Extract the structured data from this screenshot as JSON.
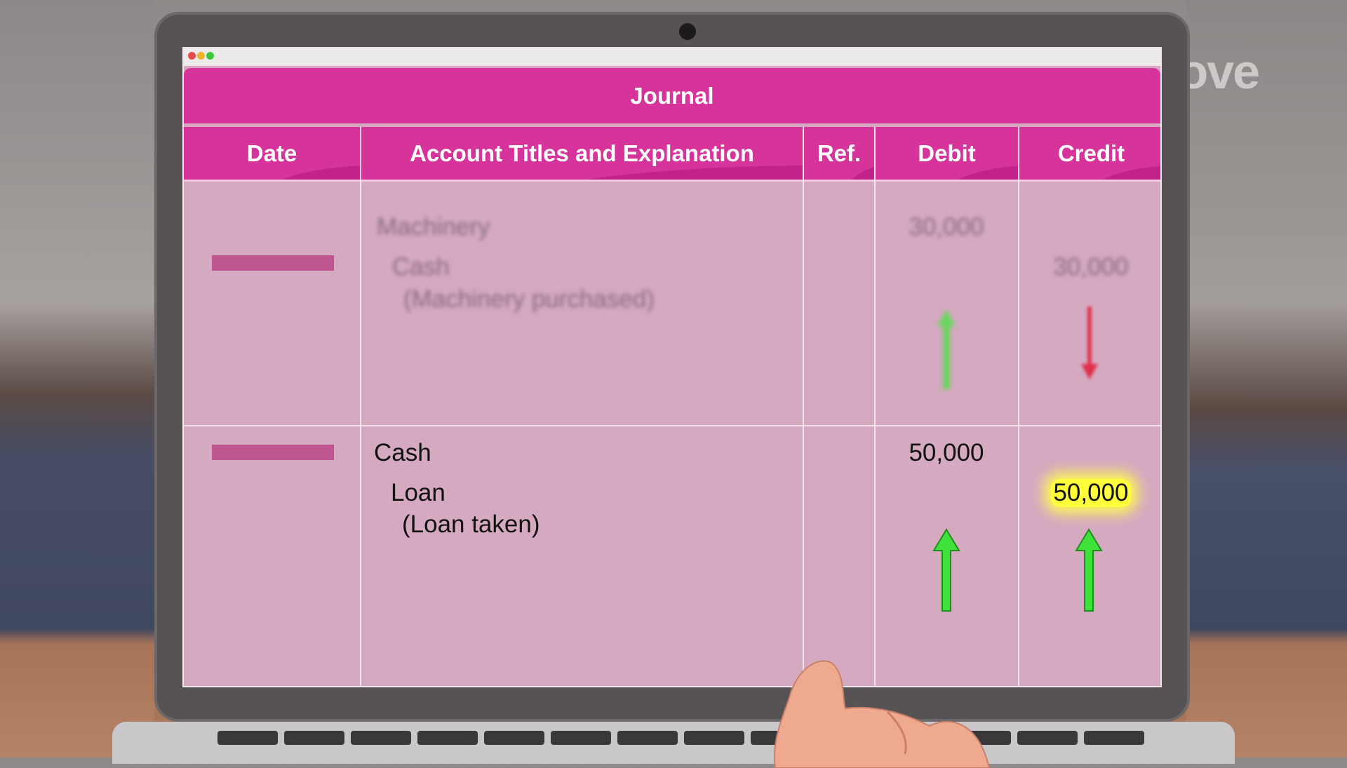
{
  "journal": {
    "title": "Journal",
    "columns": [
      "Date",
      "Account Titles and Explanation",
      "Ref.",
      "Debit",
      "Credit"
    ],
    "entries": [
      {
        "debit_account": "Machinery",
        "credit_account": "Cash",
        "explanation": "(Machinery purchased)",
        "debit": "30,000",
        "credit": "30,000",
        "debit_arrow": "up",
        "credit_arrow": "down",
        "blurred": true
      },
      {
        "debit_account": "Cash",
        "credit_account": "Loan",
        "explanation": "(Loan taken)",
        "debit": "50,000",
        "credit": "50,000",
        "debit_arrow": "up",
        "credit_arrow": "up",
        "credit_highlighted": true
      }
    ]
  },
  "logo": "jove",
  "colors": {
    "header": "#d6349b",
    "table_bg": "#d5a9c0",
    "date_bar": "#bf5690",
    "up_arrow": "#35e035",
    "down_arrow": "#e0304a",
    "highlight": "#ffff3c"
  },
  "icons": [
    "window-close-dot",
    "window-minimize-dot",
    "window-maximize-dot",
    "arrow-up-icon",
    "arrow-down-icon"
  ]
}
